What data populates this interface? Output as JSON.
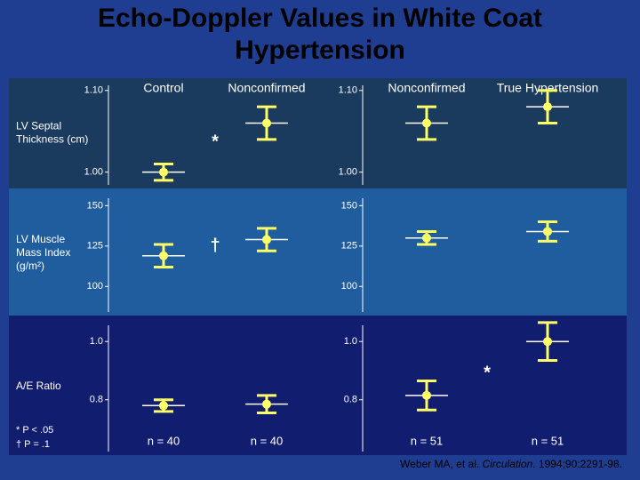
{
  "title": "Echo-Doppler Values in White Coat Hypertension",
  "footnotes": [
    "* P < .05",
    "† P = .1"
  ],
  "citation": {
    "authors": "Weber MA, et al. ",
    "journal": "Circulation",
    "details": ". 1994;90:2291-98."
  },
  "chart_data": [
    {
      "type": "errorbar",
      "ylabel": "LV Septal Thickness (cm)",
      "categories": [
        "Control",
        "Nonconfirmed"
      ],
      "values": [
        1.0,
        1.06
      ],
      "errors": [
        0.01,
        0.02
      ],
      "color": "#ffff66",
      "ylim": [
        0.98,
        1.115
      ],
      "yticks": [
        {
          "value": 1.1,
          "label": "1.10"
        },
        {
          "value": 1,
          "label": "1.00"
        }
      ],
      "annotation": "*"
    },
    {
      "type": "errorbar",
      "categories": [
        "Nonconfirmed",
        "True Hypertension"
      ],
      "values": [
        1.06,
        1.08
      ],
      "errors": [
        0.02,
        0.02
      ],
      "color": "#ffff66",
      "ylim": [
        0.98,
        1.115
      ],
      "yticks": [
        {
          "value": 1.1,
          "label": "1.10"
        },
        {
          "value": 1,
          "label": "1.00"
        }
      ]
    },
    {
      "type": "errorbar",
      "ylabel": "LV Muscle Mass Index (g/m²)",
      "values": [
        119,
        129
      ],
      "errors": [
        7,
        7
      ],
      "color": "#ffff66",
      "ylim": [
        82,
        159
      ],
      "yticks": [
        150,
        125,
        100
      ],
      "annotation": "†"
    },
    {
      "type": "errorbar",
      "values": [
        130,
        134
      ],
      "errors": [
        4,
        6
      ],
      "color": "#ffff66",
      "ylim": [
        82,
        159
      ],
      "yticks": [
        150,
        125,
        100
      ]
    },
    {
      "type": "errorbar",
      "ylabel": "A/E Ratio",
      "values": [
        0.78,
        0.785
      ],
      "errors": [
        0.02,
        0.03
      ],
      "color": "#ffff66",
      "ylim": [
        0.61,
        1.08
      ],
      "yticks": [
        {
          "value": 1,
          "label": "1.0"
        },
        0.8
      ],
      "group_sizes": [
        "n = 40",
        "n = 40"
      ]
    },
    {
      "type": "errorbar",
      "values": [
        0.815,
        1.0
      ],
      "errors": [
        0.05,
        0.065
      ],
      "color": "#ffff66",
      "ylim": [
        0.61,
        1.08
      ],
      "yticks": [
        {
          "value": 1,
          "label": "1.0"
        },
        0.8
      ],
      "group_sizes": [
        "n = 51",
        "n = 51"
      ],
      "annotation": "*"
    }
  ]
}
